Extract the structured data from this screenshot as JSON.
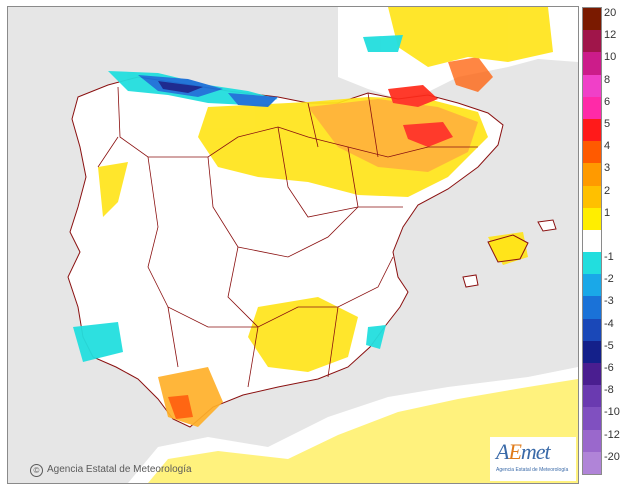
{
  "credit": "Agencia Estatal de Meteorología",
  "logo": {
    "name": "AEmet",
    "subtitle": "Agencia Estatal de Meteorología"
  },
  "legend": {
    "labels": [
      "20",
      "12",
      "10",
      "8",
      "6",
      "5",
      "4",
      "3",
      "2",
      "1",
      "",
      "-1",
      "-2",
      "-3",
      "-4",
      "-5",
      "-6",
      "-8",
      "-10",
      "-12",
      "-20"
    ],
    "colors": [
      "#7a1a00",
      "#a0154a",
      "#cc1c8a",
      "#f040c8",
      "#ff2aa8",
      "#ff1a1a",
      "#ff5a00",
      "#ff9a00",
      "#ffc000",
      "#ffee00",
      "#ffffff",
      "#22dede",
      "#1aa8e8",
      "#1a72d8",
      "#1a48b8",
      "#14208a",
      "#4a1e90",
      "#6a3ab0",
      "#8050c0",
      "#9a68cc",
      "#b084d8"
    ]
  },
  "colors": {
    "sea": "#e6e6e6",
    "land": "#ffffff",
    "border": "#8a1010",
    "light_yellow": "#fff099",
    "yellow": "#ffe41a",
    "orange": "#ffb02a",
    "red": "#ff2a1a",
    "cyan": "#22dede",
    "blue": "#1a70d8",
    "dark_blue": "#14208a"
  }
}
